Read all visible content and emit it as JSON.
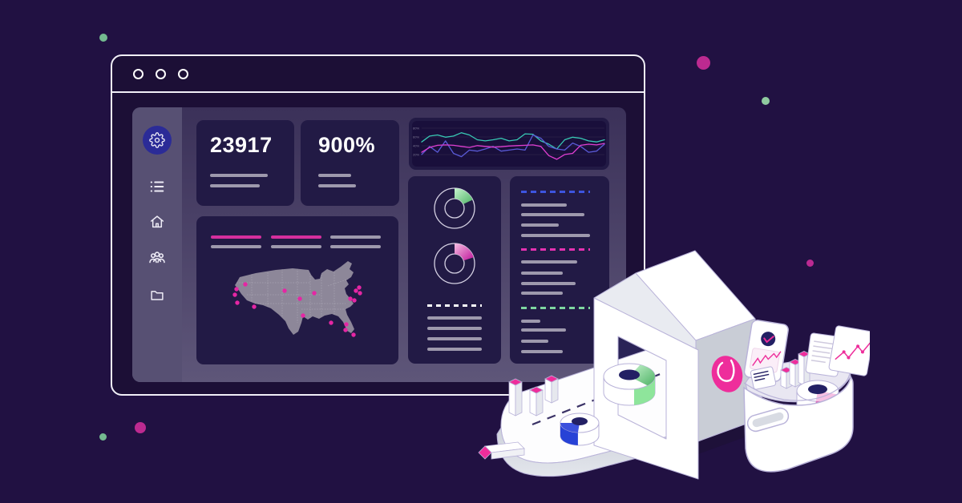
{
  "palette": {
    "bg": "#211142",
    "panel_top": "#3b3159",
    "panel_bottom": "#5e5679",
    "sidebar": "#575073",
    "card": "#221a45",
    "line_gray": "#9e99ad",
    "accent_pink": "#d62f9d",
    "badge_blue": "#2b2b97",
    "dash_blue": "#3d55e0",
    "dash_pink": "#e531b1",
    "dash_green": "#7ed6a0",
    "map_fill": "#8d8799",
    "map_dot": "#e526a4"
  },
  "window": {
    "control_count": 3
  },
  "sidebar": {
    "items": [
      {
        "name": "settings",
        "active": true
      },
      {
        "name": "list",
        "active": false
      },
      {
        "name": "home",
        "active": false
      },
      {
        "name": "users",
        "active": false
      },
      {
        "name": "projects",
        "active": false
      }
    ]
  },
  "stats": [
    {
      "value": "23917"
    },
    {
      "value": "900%"
    }
  ],
  "chart_data": [
    {
      "id": "traffic-lines",
      "type": "line",
      "title": "",
      "xlabel": "",
      "ylabel": "",
      "grid": true,
      "legend_position": "none",
      "y_ticks": [
        "80%",
        "60%",
        "40%",
        "20%"
      ],
      "series": [
        {
          "name": "teal-series",
          "color": "#38c9b4",
          "values": [
            56,
            72,
            75,
            69,
            72,
            81,
            75,
            62,
            59,
            62,
            66,
            59,
            62,
            78,
            77,
            59,
            50,
            37,
            62,
            69,
            66,
            59,
            56,
            62
          ]
        },
        {
          "name": "violet-series",
          "color": "#5a5ad6",
          "values": [
            22,
            44,
            28,
            59,
            25,
            16,
            34,
            31,
            37,
            44,
            31,
            34,
            37,
            34,
            75,
            66,
            44,
            37,
            34,
            53,
            44,
            28,
            31,
            50
          ]
        },
        {
          "name": "magenta-series",
          "color": "#de3ed0",
          "values": [
            28,
            41,
            47,
            48,
            47,
            44,
            41,
            46,
            44,
            42,
            43,
            45,
            46,
            47,
            48,
            44,
            19,
            9,
            22,
            25,
            47,
            50,
            48,
            52
          ]
        }
      ]
    },
    {
      "id": "donut-top",
      "type": "donut",
      "value_pct": 18,
      "wedge_colors": [
        "#c6f3ce",
        "#4fb366"
      ],
      "ring_color": "#d4d0e2"
    },
    {
      "id": "donut-bottom",
      "type": "donut",
      "value_pct": 20,
      "wedge_colors": [
        "#f6bfe3",
        "#bf169a"
      ],
      "ring_color": "#d4d0e2"
    },
    {
      "id": "us-map",
      "type": "scatter-map",
      "region": "United States",
      "point_color": "#e526a4",
      "points": [
        [
          17,
          32
        ],
        [
          6,
          38
        ],
        [
          4,
          45
        ],
        [
          7,
          55
        ],
        [
          28,
          60
        ],
        [
          66,
          40
        ],
        [
          85,
          50
        ],
        [
          103,
          43
        ],
        [
          89,
          71
        ],
        [
          124,
          80
        ],
        [
          143,
          82
        ],
        [
          142,
          89
        ],
        [
          152,
          95
        ],
        [
          159,
          36
        ],
        [
          155,
          40
        ],
        [
          160,
          43
        ],
        [
          148,
          50
        ],
        [
          153,
          52
        ]
      ]
    }
  ]
}
